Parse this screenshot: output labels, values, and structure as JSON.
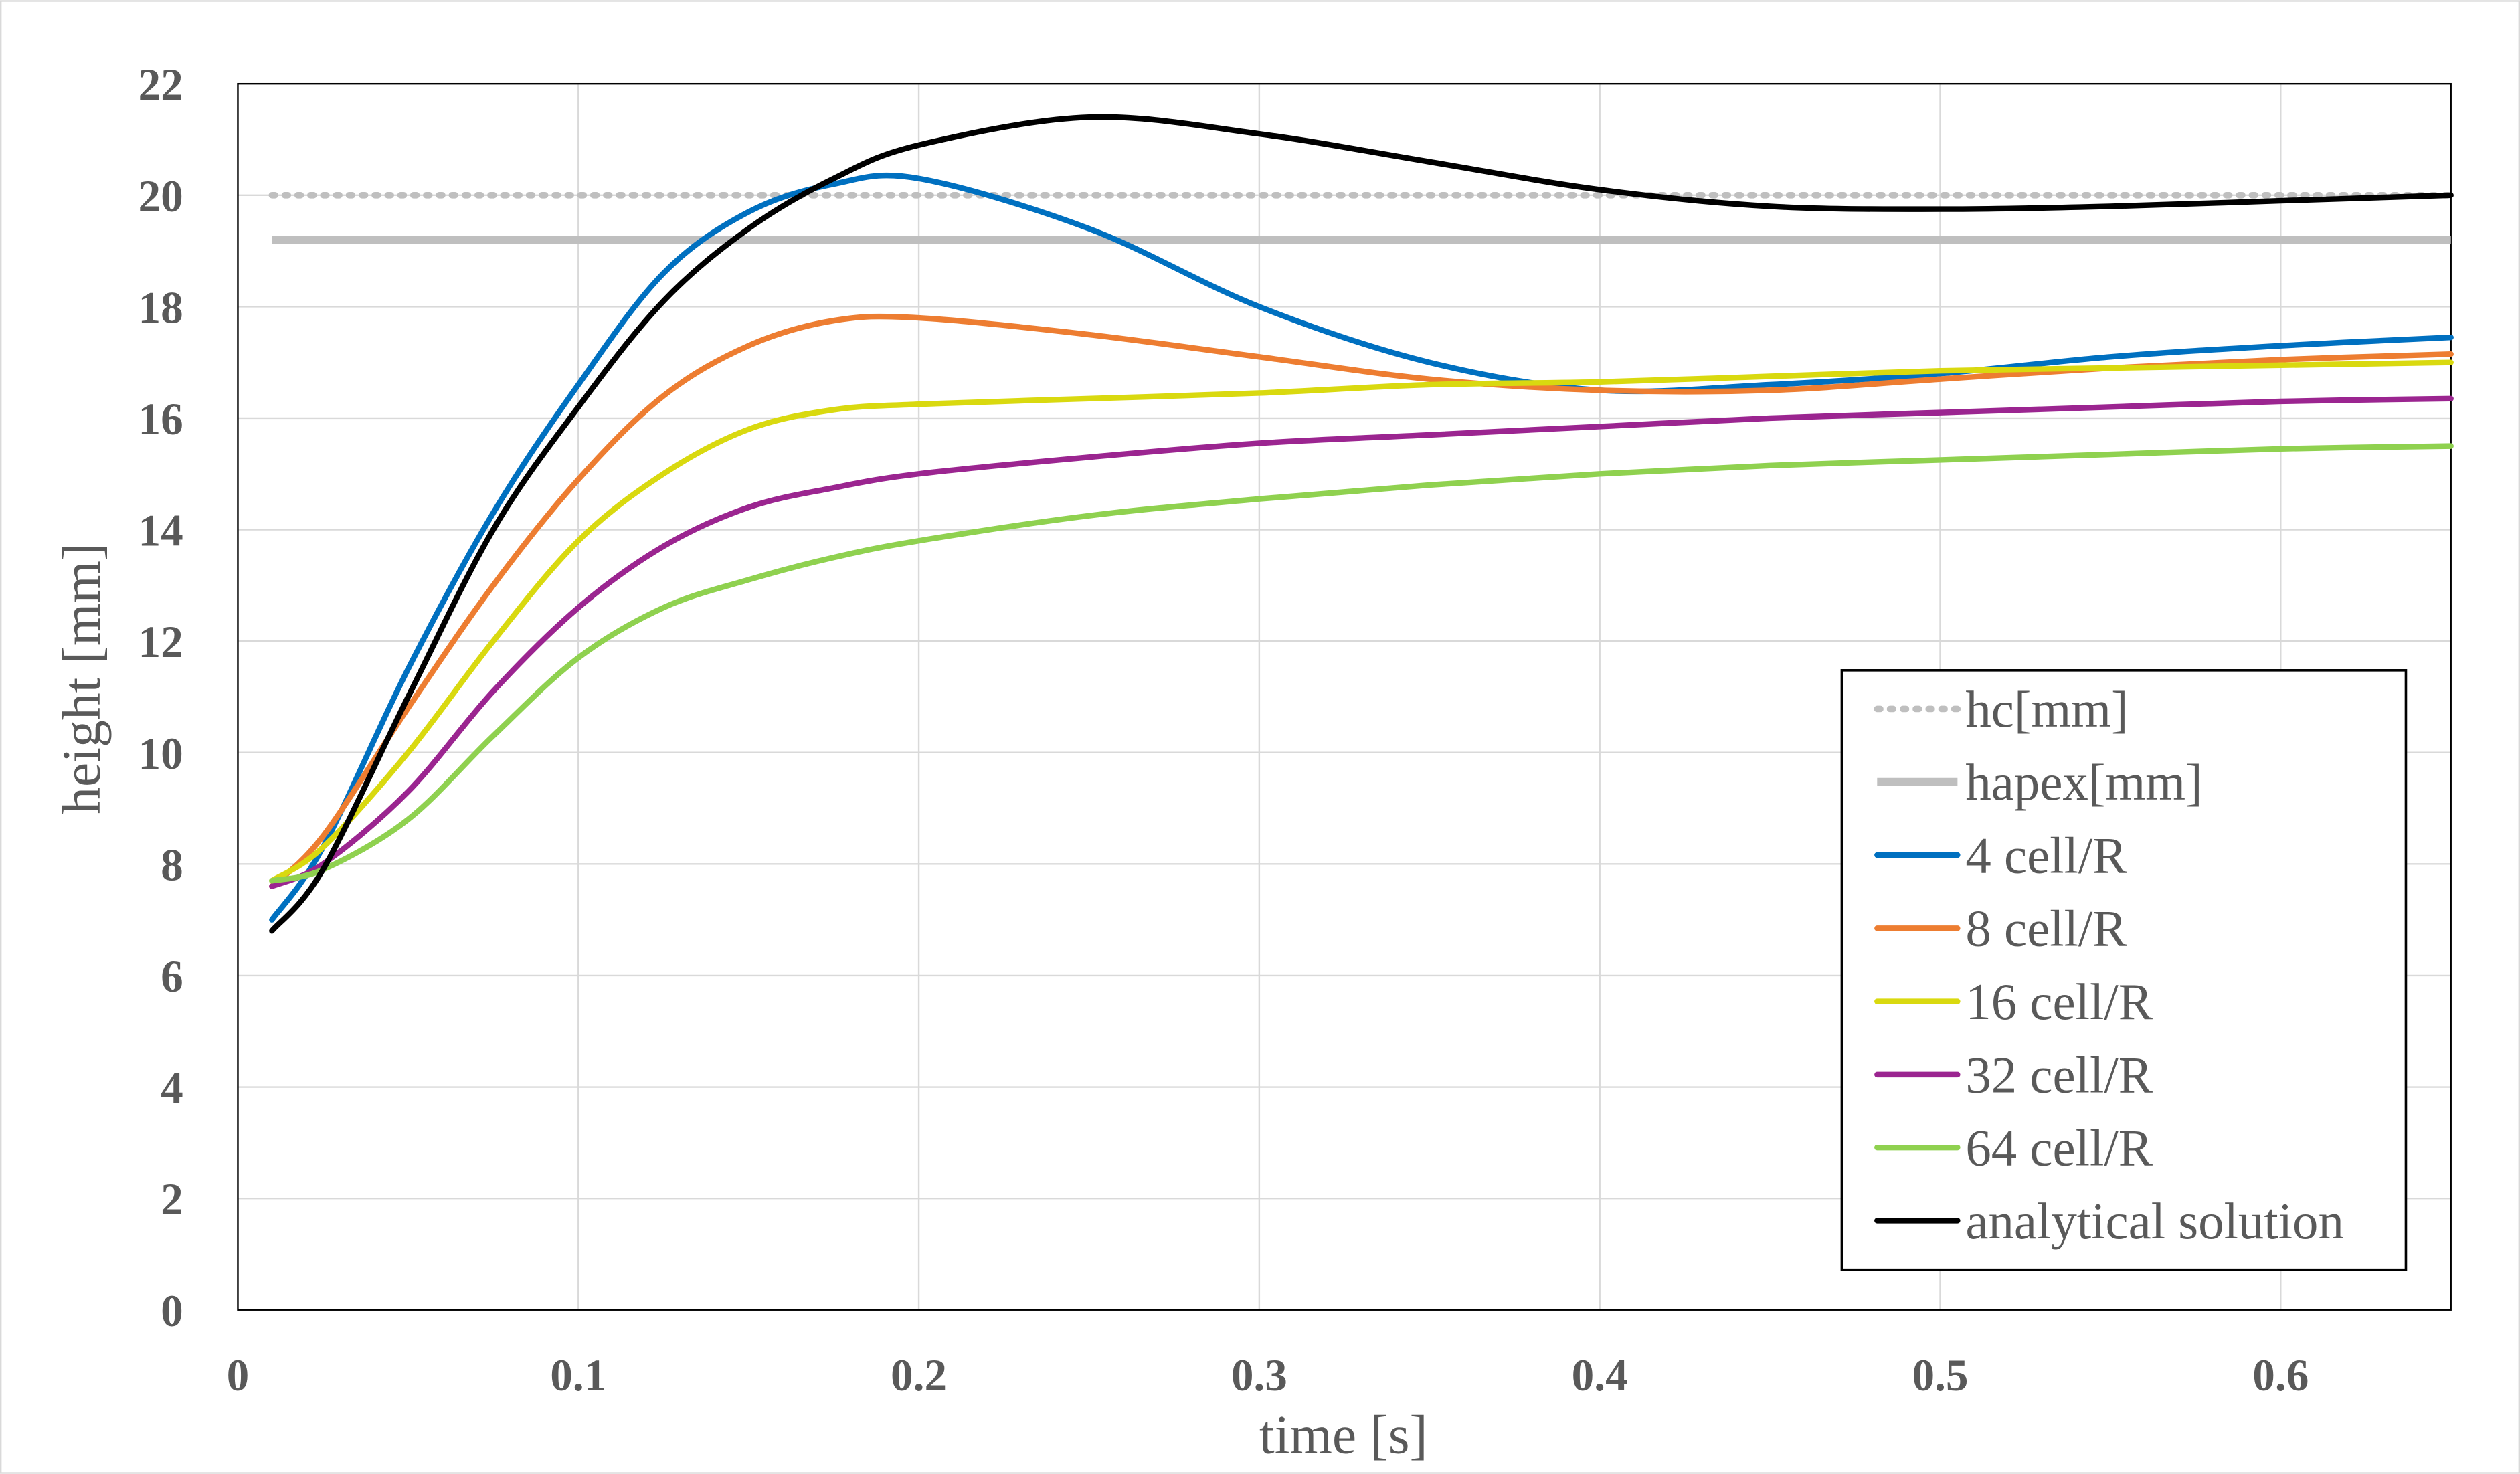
{
  "chart_data": {
    "type": "line",
    "x_label": "time [s]",
    "y_label": "height [mm]",
    "xlim": [
      0,
      0.65
    ],
    "xticks": [
      0,
      0.1,
      0.2,
      0.3,
      0.4,
      0.5,
      0.6
    ],
    "ylim": [
      0,
      22
    ],
    "yticks": [
      0,
      2,
      4,
      6,
      8,
      10,
      12,
      14,
      16,
      18,
      20,
      22
    ],
    "grid": true,
    "legend": "lower right",
    "x": [
      0.01,
      0.025,
      0.05,
      0.075,
      0.1,
      0.125,
      0.15,
      0.175,
      0.2,
      0.25,
      0.3,
      0.35,
      0.4,
      0.45,
      0.5,
      0.55,
      0.6,
      0.65
    ],
    "series": [
      {
        "name": "hc[mm]",
        "color": "#bfbfbf",
        "style": "dotted",
        "values": [
          20,
          20,
          20,
          20,
          20,
          20,
          20,
          20,
          20,
          20,
          20,
          20,
          20,
          20,
          20,
          20,
          20,
          20
        ]
      },
      {
        "name": "hapex[mm]",
        "color": "#bfbfbf",
        "style": "thick",
        "values": [
          19.2,
          19.2,
          19.2,
          19.2,
          19.2,
          19.2,
          19.2,
          19.2,
          19.2,
          19.2,
          19.2,
          19.2,
          19.2,
          19.2,
          19.2,
          19.2,
          19.2,
          19.2
        ]
      },
      {
        "name": "4 cell/R",
        "color": "#0070c0",
        "values": [
          7.0,
          8.3,
          11.5,
          14.3,
          16.6,
          18.6,
          19.7,
          20.2,
          20.3,
          19.4,
          18.0,
          17.0,
          16.5,
          16.6,
          16.8,
          17.1,
          17.3,
          17.45
        ]
      },
      {
        "name": "8 cell/R",
        "color": "#ed7d31",
        "values": [
          7.6,
          8.5,
          10.8,
          13.0,
          14.9,
          16.4,
          17.3,
          17.75,
          17.8,
          17.5,
          17.1,
          16.7,
          16.5,
          16.5,
          16.7,
          16.9,
          17.05,
          17.15
        ]
      },
      {
        "name": "16 cell/R",
        "color": "#d9d90f",
        "values": [
          7.7,
          8.3,
          10.0,
          12.0,
          13.8,
          15.0,
          15.8,
          16.15,
          16.25,
          16.35,
          16.45,
          16.6,
          16.65,
          16.75,
          16.85,
          16.9,
          16.95,
          17.0
        ]
      },
      {
        "name": "32 cell/R",
        "color": "#9b2590",
        "values": [
          7.6,
          8.0,
          9.3,
          11.1,
          12.6,
          13.7,
          14.4,
          14.75,
          15.0,
          15.3,
          15.55,
          15.7,
          15.85,
          16.0,
          16.1,
          16.2,
          16.3,
          16.35
        ]
      },
      {
        "name": "64 cell/R",
        "color": "#8fd14f",
        "values": [
          7.7,
          7.9,
          8.8,
          10.3,
          11.7,
          12.6,
          13.1,
          13.5,
          13.8,
          14.25,
          14.55,
          14.8,
          15.0,
          15.15,
          15.25,
          15.35,
          15.45,
          15.5
        ]
      },
      {
        "name": "analytical solution",
        "color": "#000000",
        "values": [
          6.8,
          7.9,
          11.0,
          14.0,
          16.2,
          18.1,
          19.4,
          20.3,
          20.9,
          21.4,
          21.1,
          20.6,
          20.1,
          19.8,
          19.75,
          19.8,
          19.9,
          20.0
        ]
      }
    ]
  }
}
